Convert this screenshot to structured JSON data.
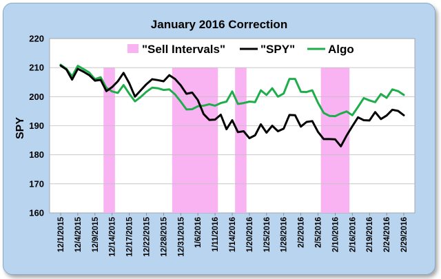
{
  "chart_data": {
    "type": "line",
    "title": "January 2016 Correction",
    "xlabel": "",
    "ylabel": "SPY",
    "ylim": [
      160,
      220
    ],
    "yticks": [
      160,
      170,
      180,
      190,
      200,
      210,
      220
    ],
    "grid": true,
    "legend_position": "top",
    "x": [
      "12/1/2015",
      "12/2/2015",
      "12/3/2015",
      "12/4/2015",
      "12/7/2015",
      "12/8/2015",
      "12/9/2015",
      "12/10/2015",
      "12/11/2015",
      "12/14/2015",
      "12/15/2015",
      "12/16/2015",
      "12/17/2015",
      "12/18/2015",
      "12/21/2015",
      "12/22/2015",
      "12/23/2015",
      "12/24/2015",
      "12/28/2015",
      "12/29/2015",
      "12/30/2015",
      "12/31/2015",
      "1/4/2016",
      "1/5/2016",
      "1/6/2016",
      "1/7/2016",
      "1/8/2016",
      "1/11/2016",
      "1/12/2016",
      "1/13/2016",
      "1/14/2016",
      "1/15/2016",
      "1/19/2016",
      "1/20/2016",
      "1/21/2016",
      "1/22/2016",
      "1/25/2016",
      "1/26/2016",
      "1/27/2016",
      "1/28/2016",
      "1/29/2016",
      "2/1/2016",
      "2/2/2016",
      "2/3/2016",
      "2/4/2016",
      "2/5/2016",
      "2/8/2016",
      "2/9/2016",
      "2/10/2016",
      "2/11/2016",
      "2/12/2016",
      "2/16/2016",
      "2/17/2016",
      "2/18/2016",
      "2/19/2016",
      "2/22/2016",
      "2/23/2016",
      "2/24/2016",
      "2/25/2016",
      "2/26/2016",
      "2/29/2016"
    ],
    "xtick_labels": [
      "12/1/2015",
      "12/4/2015",
      "12/9/2015",
      "12/14/2015",
      "12/17/2015",
      "12/22/2015",
      "12/28/2015",
      "12/31/2015",
      "1/6/2016",
      "1/11/2016",
      "1/14/2016",
      "1/20/2016",
      "1/25/2016",
      "1/28/2016",
      "2/2/2016",
      "2/5/2016",
      "2/10/2016",
      "2/16/2016",
      "2/19/2016",
      "2/24/2016",
      "2/29/2016"
    ],
    "sell_intervals": [
      [
        "12/11/2015",
        "12/14/2015"
      ],
      [
        "12/30/2015",
        "1/11/2016"
      ],
      [
        "1/15/2016",
        "1/19/2016"
      ],
      [
        "2/8/2016",
        "2/12/2016"
      ]
    ],
    "legend": [
      "\"Sell Intervals\"",
      "\"SPY\"",
      "Algo"
    ],
    "series": [
      {
        "name": "\"SPY\"",
        "color": "#000000",
        "values": [
          210.7,
          209.4,
          205.9,
          209.6,
          208.6,
          207.4,
          205.5,
          205.8,
          201.9,
          203.3,
          205.3,
          208.2,
          204.6,
          200.0,
          202.2,
          204.3,
          206.0,
          205.7,
          205.3,
          207.4,
          206.1,
          203.9,
          201.0,
          201.4,
          198.8,
          194.0,
          192.0,
          192.1,
          193.8,
          188.8,
          191.9,
          187.8,
          188.1,
          185.7,
          186.7,
          190.5,
          187.6,
          190.0,
          188.1,
          189.0,
          193.7,
          193.6,
          189.7,
          191.3,
          191.6,
          187.9,
          185.4,
          185.4,
          185.3,
          182.9,
          186.6,
          189.8,
          192.9,
          191.9,
          191.8,
          194.7,
          192.3,
          193.5,
          195.5,
          195.1,
          193.6
        ]
      },
      {
        "name": "Algo",
        "color": "#1fad4b",
        "values": [
          211.0,
          209.6,
          207.0,
          210.6,
          209.5,
          208.3,
          206.0,
          206.7,
          203.0,
          201.8,
          201.3,
          204.0,
          201.0,
          198.4,
          199.9,
          201.7,
          203.1,
          202.9,
          202.3,
          202.5,
          200.8,
          198.3,
          195.6,
          195.7,
          196.7,
          196.9,
          197.4,
          196.9,
          197.8,
          198.3,
          201.8,
          197.5,
          197.8,
          198.3,
          198.1,
          202.2,
          200.6,
          202.9,
          200.0,
          201.1,
          206.1,
          206.1,
          201.7,
          201.6,
          202.2,
          197.9,
          194.4,
          193.4,
          193.3,
          194.2,
          194.9,
          193.6,
          196.5,
          199.5,
          198.7,
          198.1,
          200.9,
          199.6,
          202.5,
          201.9,
          200.6
        ]
      }
    ]
  }
}
